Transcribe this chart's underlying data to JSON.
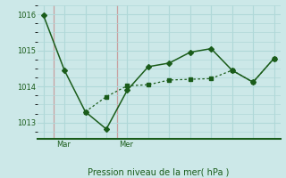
{
  "background_color": "#cce8e8",
  "grid_color": "#b0d8d8",
  "line_color": "#1a5c1a",
  "axis_color": "#1a5c1a",
  "separator_color": "#c8a0a0",
  "title": "Pression niveau de la mer( hPa )",
  "yticks": [
    1013,
    1014,
    1015,
    1016
  ],
  "ylim": [
    1012.55,
    1016.25
  ],
  "xlim": [
    -0.3,
    11.3
  ],
  "x_tick_labels": [
    "Mar",
    "Mer"
  ],
  "x_tick_positions": [
    0.5,
    3.5
  ],
  "line1_x": [
    0,
    1,
    2,
    3,
    4,
    5,
    6,
    7,
    8,
    9,
    10,
    11
  ],
  "line1_y": [
    1015.97,
    1014.45,
    1013.3,
    1012.82,
    1013.9,
    1014.55,
    1014.65,
    1014.95,
    1015.05,
    1014.45,
    1014.12,
    1014.78
  ],
  "line2_x": [
    2,
    3,
    4,
    5,
    6,
    7,
    8,
    9,
    10,
    11
  ],
  "line2_y": [
    1013.3,
    1013.72,
    1014.02,
    1014.05,
    1014.18,
    1014.2,
    1014.22,
    1014.45,
    1014.12,
    1014.78
  ]
}
